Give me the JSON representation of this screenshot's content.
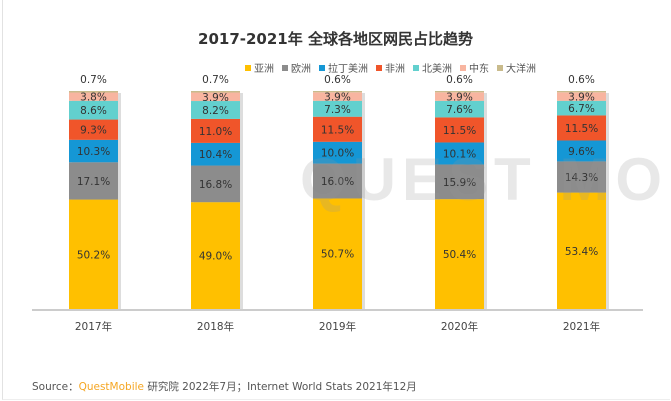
{
  "chart_data": {
    "type": "bar",
    "stacked": true,
    "title": "2017-2021年 全球各地区网民占比趋势",
    "categories": [
      "2017年",
      "2018年",
      "2019年",
      "2020年",
      "2021年"
    ],
    "ylim": [
      0,
      100
    ],
    "grid": false,
    "legend_placement": "top",
    "series": [
      {
        "name": "亚洲",
        "color": "#FFC000",
        "values": [
          50.2,
          49.0,
          50.7,
          50.4,
          53.4
        ]
      },
      {
        "name": "欧洲",
        "color": "#8C8C8C",
        "values": [
          17.1,
          16.8,
          16.0,
          15.9,
          14.3
        ]
      },
      {
        "name": "拉丁美洲",
        "color": "#1597D5",
        "values": [
          10.3,
          10.4,
          10.0,
          10.1,
          9.6
        ]
      },
      {
        "name": "非洲",
        "color": "#F0552A",
        "values": [
          9.3,
          11.0,
          11.5,
          11.5,
          11.5
        ]
      },
      {
        "name": "北美洲",
        "color": "#62D0CE",
        "values": [
          8.6,
          8.2,
          7.3,
          7.6,
          6.7
        ]
      },
      {
        "name": "中东",
        "color": "#F8B5A0",
        "values": [
          3.8,
          3.9,
          3.9,
          3.9,
          3.9
        ]
      },
      {
        "name": "大洋洲",
        "color": "#C9BB8C",
        "values": [
          0.7,
          0.7,
          0.6,
          0.6,
          0.6
        ]
      }
    ]
  },
  "watermark": "QUEST MOBILE",
  "source": {
    "prefix": "Source：",
    "brand": "QuestMobile",
    "text": " 研究院 2022年7月；Internet World Stats 2021年12月"
  }
}
